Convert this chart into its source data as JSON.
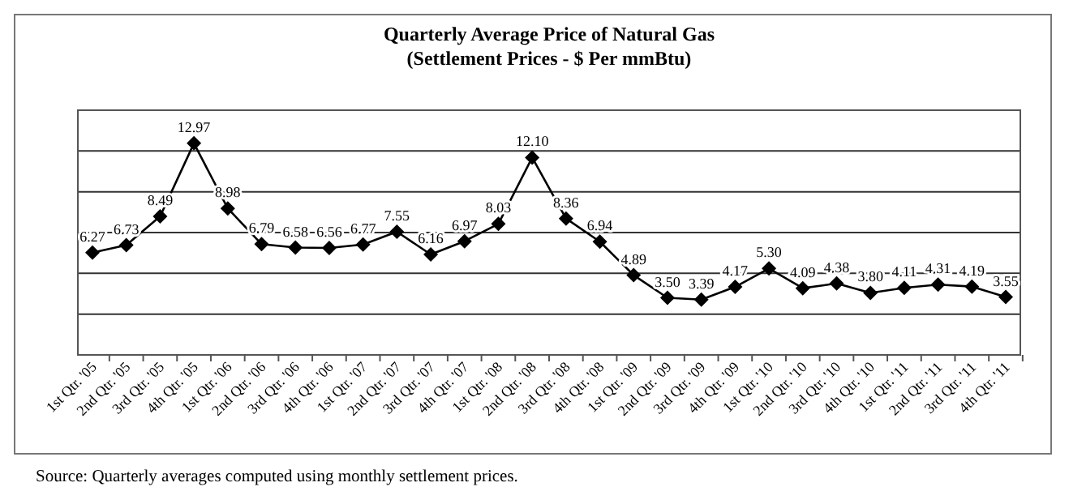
{
  "chart_data": {
    "type": "line",
    "title": "Quarterly Average Price of Natural Gas",
    "subtitle": "(Settlement Prices - $ Per mmBtu)",
    "categories": [
      "1st Qtr. '05",
      "2nd Qtr. '05",
      "3rd Qtr. '05",
      "4th Qtr. '05",
      "1st Qtr. '06",
      "2nd Qtr. '06",
      "3rd Qtr. '06",
      "4th Qtr. '06",
      "1st Qtr. '07",
      "2nd Qtr. '07",
      "3rd Qtr. '07",
      "4th Qtr. '07",
      "1st Qtr. '08",
      "2nd Qtr. '08",
      "3rd Qtr. '08",
      "4th Qtr. '08",
      "1st Qtr. '09",
      "2nd Qtr. '09",
      "3rd Qtr. '09",
      "4th Qtr. '09",
      "1st Qtr. '10",
      "2nd Qtr. '10",
      "3rd Qtr. '10",
      "4th Qtr. '10",
      "1st Qtr. '11",
      "2nd Qtr. '11",
      "3rd Qtr. '11",
      "4th Qtr. '11"
    ],
    "series": [
      {
        "color": "#000000",
        "values": [
          6.27,
          6.73,
          8.49,
          12.97,
          8.98,
          6.79,
          6.58,
          6.56,
          6.77,
          7.55,
          6.16,
          6.97,
          8.03,
          12.1,
          8.36,
          6.94,
          4.89,
          3.5,
          3.39,
          4.17,
          5.3,
          4.09,
          4.38,
          3.8,
          4.11,
          4.31,
          4.19,
          3.55
        ],
        "value_labels": [
          "6.27",
          "6.73",
          "8.49",
          "12.97",
          "8.98",
          "6.79",
          "6.58",
          "6.56",
          "6.77",
          "7.55",
          "6.16",
          "6.97",
          "8.03",
          "12.10",
          "8.36",
          "6.94",
          "4.89",
          "3.50",
          "3.39",
          "4.17",
          "5.30",
          "4.09",
          "4.38",
          "3.80",
          "4.11",
          "4.31",
          "4.19",
          "3.55"
        ]
      }
    ],
    "ylim": [
      0,
      15
    ],
    "yticks": [
      {
        "value": 0,
        "label": null
      },
      {
        "value": 2.5,
        "label": null
      },
      {
        "value": 5,
        "label": null
      },
      {
        "value": 7.5,
        "label": null
      },
      {
        "value": 10,
        "label": null
      },
      {
        "value": 12.5,
        "label": null
      },
      {
        "value": 15,
        "label": null
      }
    ],
    "tick_labels": "x",
    "grid": "y",
    "marker": "diamond",
    "line_style": "solid",
    "annotations": [
      "Source:  Quarterly averages computed using monthly settlement prices."
    ]
  }
}
